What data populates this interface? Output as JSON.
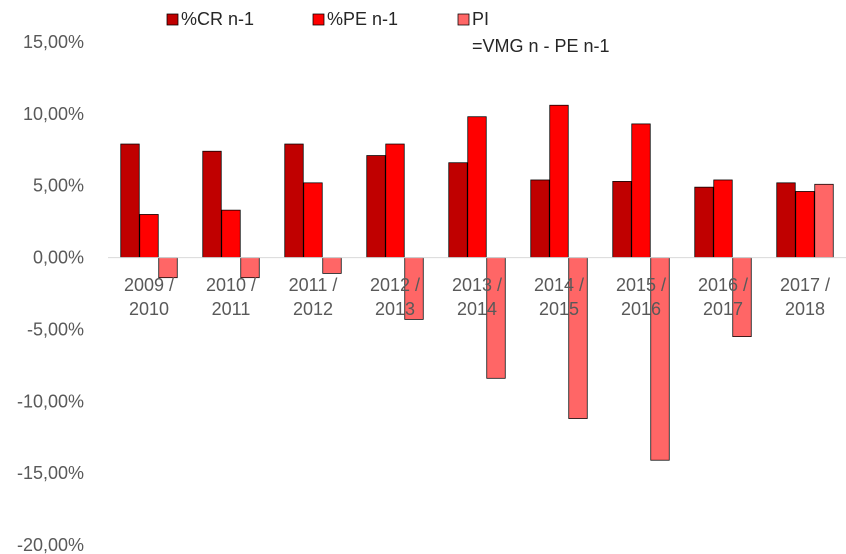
{
  "chart_data": {
    "type": "bar",
    "categories": [
      [
        "2009 /",
        "2010"
      ],
      [
        "2010 /",
        "2011"
      ],
      [
        "2011 /",
        "2012"
      ],
      [
        "2012 /",
        "2013"
      ],
      [
        "2013 /",
        "2014"
      ],
      [
        "2014 /",
        "2015"
      ],
      [
        "2015 /",
        "2016"
      ],
      [
        "2016 /",
        "2017"
      ],
      [
        "2017 /",
        "2018"
      ]
    ],
    "series": [
      {
        "name": "%CR n-1",
        "color": "#c00000",
        "values": [
          7.9,
          7.4,
          7.9,
          7.1,
          6.6,
          5.4,
          5.3,
          4.9,
          5.2
        ]
      },
      {
        "name": "%PE n-1",
        "color": "#ff0000",
        "values": [
          3.0,
          3.3,
          5.2,
          7.9,
          9.8,
          10.6,
          9.3,
          5.4,
          4.6
        ]
      },
      {
        "name": "PI",
        "name_line2": "=VMG n - PE n-1",
        "color": "#ff6666",
        "values": [
          -1.4,
          -1.4,
          -1.1,
          -4.3,
          -8.4,
          -11.2,
          -14.1,
          -5.5,
          5.1
        ]
      }
    ],
    "ylim": [
      -20,
      15
    ],
    "yticks": [
      "15,00%",
      "10,00%",
      "5,00%",
      "0,00%",
      "-5,00%",
      "-10,00%",
      "-15,00%",
      "-20,00%"
    ],
    "ytick_values": [
      15,
      10,
      5,
      0,
      -5,
      -10,
      -15,
      -20
    ],
    "legend_position": "top",
    "grid": false
  }
}
